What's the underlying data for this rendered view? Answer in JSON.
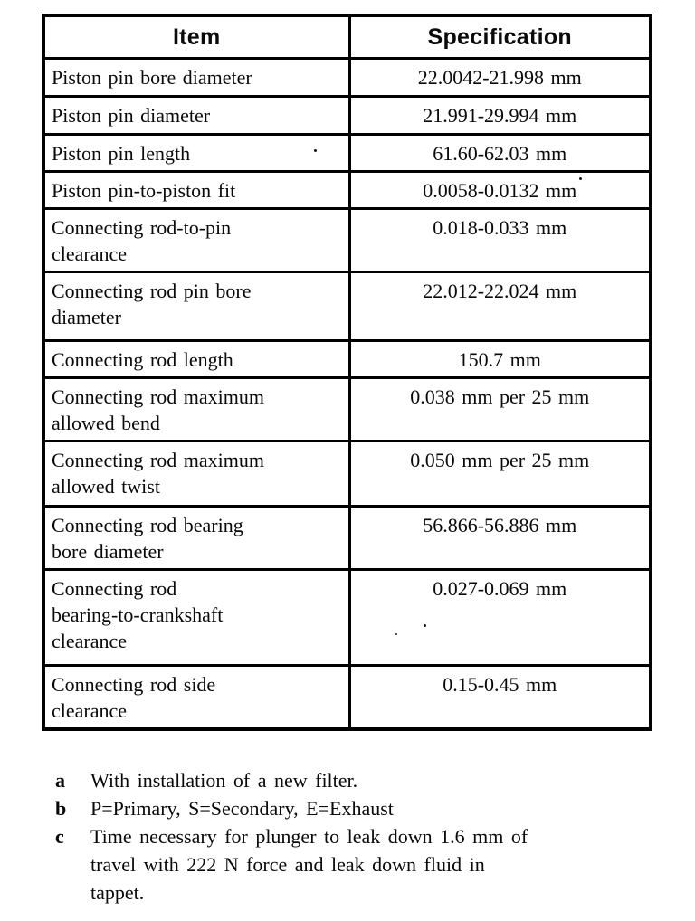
{
  "page": {
    "background_color": "#ffffff",
    "ink_color": "#000000"
  },
  "table": {
    "headers": [
      "Item",
      "Specification"
    ],
    "rows": [
      {
        "item": "Piston pin bore diameter",
        "spec": "22.0042-21.998 mm"
      },
      {
        "item": "Piston pin diameter",
        "spec": "21.991-29.994 mm"
      },
      {
        "item": "Piston pin length",
        "spec": "61.60-62.03 mm"
      },
      {
        "item": "Piston pin-to-piston fit",
        "spec": "0.0058-0.0132 mm"
      },
      {
        "item": "Connecting rod-to-pin\nclearance",
        "spec": "0.018-0.033 mm"
      },
      {
        "item": "Connecting rod pin bore\ndiameter",
        "spec": "22.012-22.024 mm"
      },
      {
        "item": "Connecting rod length",
        "spec": "150.7 mm"
      },
      {
        "item": "Connecting rod maximum\nallowed bend",
        "spec": "0.038 mm per 25 mm"
      },
      {
        "item": "Connecting rod maximum\nallowed twist",
        "spec": "0.050 mm per 25 mm"
      },
      {
        "item": "Connecting rod bearing\nbore diameter",
        "spec": "56.866-56.886 mm"
      },
      {
        "item": "Connecting rod\nbearing-to-crankshaft\nclearance",
        "spec": "0.027-0.069 mm"
      },
      {
        "item": "Connecting rod side\nclearance",
        "spec": "0.15-0.45 mm"
      }
    ]
  },
  "footnotes": [
    {
      "label": "a",
      "text": "With installation of a new filter."
    },
    {
      "label": "b",
      "text": "P=Primary, S=Secondary, E=Exhaust"
    },
    {
      "label": "c",
      "text": "Time necessary for plunger to leak down 1.6 mm of\ntravel with 222 N force and leak down fluid in\ntappet."
    }
  ]
}
